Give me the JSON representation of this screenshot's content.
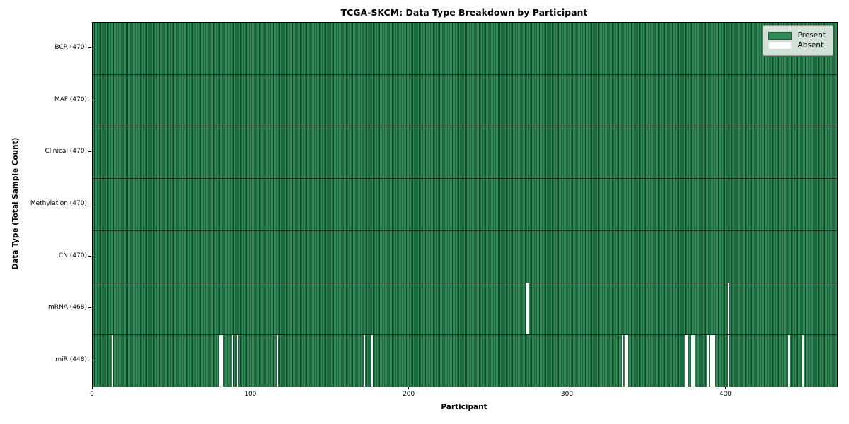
{
  "chart_data": {
    "type": "heatmap",
    "title": "TCGA-SKCM: Data Type Breakdown by Participant",
    "xlabel": "Participant",
    "ylabel": "Data Type (Total Sample Count)",
    "n_participants": 470,
    "x_ticks": [
      0,
      100,
      200,
      300,
      400
    ],
    "x_range": [
      0,
      470
    ],
    "grid": false,
    "legend_position": "upper right",
    "colors": {
      "present": "#2e8b57",
      "present_edge": "#16432a",
      "absent": "#ffffff",
      "legend_bg": "#ebf1eb"
    },
    "legend": [
      {
        "label": "Present",
        "color": "#2e8b57"
      },
      {
        "label": "Absent",
        "color": "#ffffff"
      }
    ],
    "rows": [
      {
        "name": "bcr",
        "label": "BCR (470)",
        "data_type": "BCR",
        "total": 470,
        "absent": []
      },
      {
        "name": "maf",
        "label": "MAF (470)",
        "data_type": "MAF",
        "total": 470,
        "absent": []
      },
      {
        "name": "clinical",
        "label": "Clinical (470)",
        "data_type": "Clinical",
        "total": 470,
        "absent": []
      },
      {
        "name": "methylation",
        "label": "Methylation (470)",
        "data_type": "Methylation",
        "total": 470,
        "absent": []
      },
      {
        "name": "cn",
        "label": "CN (470)",
        "data_type": "CN",
        "total": 470,
        "absent": []
      },
      {
        "name": "mrna",
        "label": "mRNA (468)",
        "data_type": "mRNA",
        "total": 468,
        "absent": [
          274,
          401
        ]
      },
      {
        "name": "mir",
        "label": "miR (448)",
        "data_type": "miR",
        "total": 448,
        "absent": [
          12,
          80,
          81,
          88,
          91,
          116,
          171,
          176,
          334,
          336,
          337,
          374,
          375,
          378,
          379,
          388,
          390,
          391,
          392,
          401,
          439,
          448
        ]
      }
    ]
  }
}
